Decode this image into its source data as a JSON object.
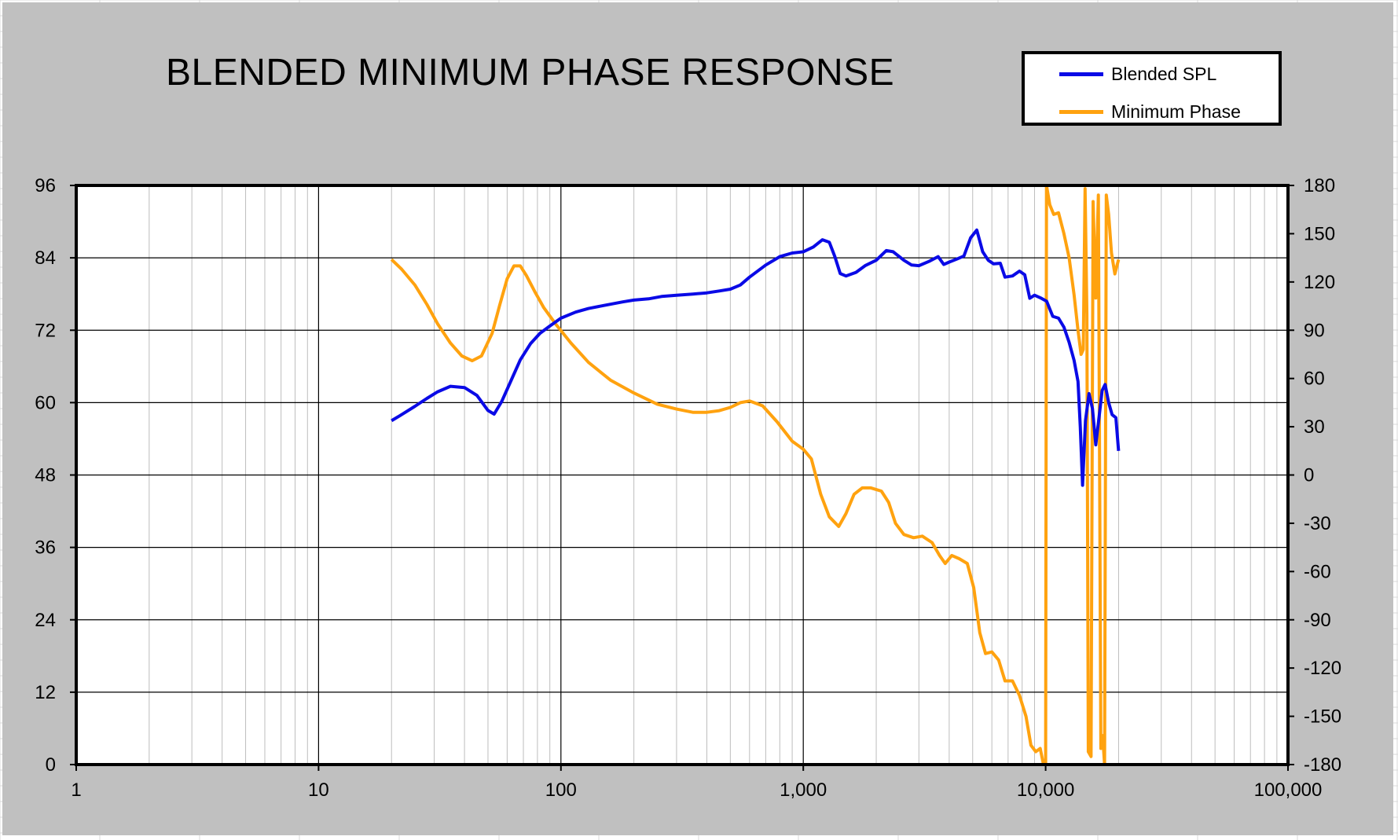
{
  "colors": {
    "chart_bg": "#c0c0c0",
    "plot_bg": "#ffffff",
    "spl": "#0a0ae6",
    "phase": "#ffa20f"
  },
  "chart_data": {
    "type": "line",
    "title": "BLENDED MINIMUM PHASE RESPONSE",
    "xscale": "log",
    "xlim": [
      1,
      100000
    ],
    "ylim_left": [
      0,
      96
    ],
    "ylim_right": [
      -180,
      180
    ],
    "x_ticks": [
      1,
      10,
      100,
      1000,
      10000,
      100000
    ],
    "x_tick_labels": [
      "1",
      "10",
      "100",
      "1,000",
      "10,000",
      "100,000"
    ],
    "y_left_ticks": [
      "0",
      "12",
      "24",
      "36",
      "48",
      "60",
      "72",
      "84",
      "96"
    ],
    "y_right_ticks": [
      "-180",
      "-150",
      "-120",
      "-90",
      "-60",
      "-30",
      "0",
      "30",
      "60",
      "90",
      "120",
      "150",
      "180"
    ],
    "grid": true,
    "legend_position": "top-right",
    "series": [
      {
        "name": "Blended SPL",
        "axis": "left",
        "color": "#0a0ae6",
        "points": [
          [
            20,
            57.0
          ],
          [
            22,
            58.0
          ],
          [
            25,
            59.4
          ],
          [
            28,
            60.7
          ],
          [
            31,
            61.8
          ],
          [
            35,
            62.7
          ],
          [
            40,
            62.5
          ],
          [
            45,
            61.2
          ],
          [
            50,
            58.7
          ],
          [
            53,
            58.1
          ],
          [
            57,
            60.2
          ],
          [
            62,
            63.5
          ],
          [
            68,
            67.1
          ],
          [
            75,
            69.8
          ],
          [
            82,
            71.5
          ],
          [
            90,
            72.7
          ],
          [
            100,
            74.0
          ],
          [
            115,
            75.0
          ],
          [
            130,
            75.6
          ],
          [
            150,
            76.1
          ],
          [
            180,
            76.7
          ],
          [
            200,
            77.0
          ],
          [
            230,
            77.2
          ],
          [
            260,
            77.6
          ],
          [
            300,
            77.8
          ],
          [
            350,
            78.0
          ],
          [
            400,
            78.2
          ],
          [
            450,
            78.5
          ],
          [
            500,
            78.8
          ],
          [
            550,
            79.5
          ],
          [
            600,
            80.8
          ],
          [
            700,
            82.8
          ],
          [
            800,
            84.2
          ],
          [
            900,
            84.8
          ],
          [
            1000,
            85.0
          ],
          [
            1100,
            85.8
          ],
          [
            1200,
            87.0
          ],
          [
            1280,
            86.6
          ],
          [
            1350,
            84.2
          ],
          [
            1420,
            81.4
          ],
          [
            1500,
            81.0
          ],
          [
            1650,
            81.6
          ],
          [
            1800,
            82.7
          ],
          [
            2000,
            83.6
          ],
          [
            2200,
            85.2
          ],
          [
            2350,
            85.0
          ],
          [
            2600,
            83.6
          ],
          [
            2800,
            82.8
          ],
          [
            3000,
            82.7
          ],
          [
            3300,
            83.4
          ],
          [
            3600,
            84.2
          ],
          [
            3800,
            82.9
          ],
          [
            4000,
            83.3
          ],
          [
            4300,
            83.8
          ],
          [
            4600,
            84.3
          ],
          [
            4900,
            87.3
          ],
          [
            5200,
            88.6
          ],
          [
            5500,
            85.0
          ],
          [
            5800,
            83.6
          ],
          [
            6100,
            83.0
          ],
          [
            6500,
            83.1
          ],
          [
            6800,
            80.8
          ],
          [
            7300,
            81.0
          ],
          [
            7800,
            81.8
          ],
          [
            8200,
            81.2
          ],
          [
            8600,
            77.3
          ],
          [
            9000,
            77.8
          ],
          [
            9600,
            77.3
          ],
          [
            10100,
            76.8
          ],
          [
            10700,
            74.3
          ],
          [
            11300,
            74.0
          ],
          [
            11900,
            72.5
          ],
          [
            12500,
            70.0
          ],
          [
            13100,
            67.0
          ],
          [
            13600,
            63.5
          ],
          [
            13900,
            56.0
          ],
          [
            14200,
            46.3
          ],
          [
            14600,
            57.0
          ],
          [
            15100,
            61.5
          ],
          [
            15600,
            59.0
          ],
          [
            16100,
            53.0
          ],
          [
            16600,
            57.5
          ],
          [
            17100,
            62.0
          ],
          [
            17600,
            63.0
          ],
          [
            18200,
            60.0
          ],
          [
            18800,
            58.0
          ],
          [
            19500,
            57.5
          ],
          [
            20000,
            52.0
          ]
        ]
      },
      {
        "name": "Minimum Phase",
        "axis": "right",
        "color": "#ffa20f",
        "points": [
          [
            20,
            134
          ],
          [
            22,
            128
          ],
          [
            25,
            118
          ],
          [
            28,
            106
          ],
          [
            31,
            94
          ],
          [
            35,
            82
          ],
          [
            39,
            74
          ],
          [
            43,
            71
          ],
          [
            47,
            74
          ],
          [
            52,
            88
          ],
          [
            56,
            106
          ],
          [
            60,
            122
          ],
          [
            64,
            130
          ],
          [
            68,
            130
          ],
          [
            72,
            124
          ],
          [
            78,
            114
          ],
          [
            85,
            104
          ],
          [
            95,
            94
          ],
          [
            110,
            82
          ],
          [
            130,
            70
          ],
          [
            160,
            59
          ],
          [
            200,
            51
          ],
          [
            250,
            44
          ],
          [
            300,
            41
          ],
          [
            350,
            39
          ],
          [
            400,
            39
          ],
          [
            450,
            40
          ],
          [
            500,
            42
          ],
          [
            550,
            45
          ],
          [
            600,
            46
          ],
          [
            680,
            43
          ],
          [
            780,
            33
          ],
          [
            900,
            21
          ],
          [
            1000,
            16
          ],
          [
            1080,
            10
          ],
          [
            1180,
            -12
          ],
          [
            1280,
            -26
          ],
          [
            1400,
            -32
          ],
          [
            1500,
            -24
          ],
          [
            1620,
            -12
          ],
          [
            1750,
            -8
          ],
          [
            1900,
            -8
          ],
          [
            2100,
            -10
          ],
          [
            2250,
            -17
          ],
          [
            2400,
            -30
          ],
          [
            2600,
            -37
          ],
          [
            2850,
            -39
          ],
          [
            3100,
            -38
          ],
          [
            3400,
            -42
          ],
          [
            3650,
            -50
          ],
          [
            3850,
            -55
          ],
          [
            4100,
            -50
          ],
          [
            4400,
            -52
          ],
          [
            4750,
            -55
          ],
          [
            5050,
            -70
          ],
          [
            5350,
            -98
          ],
          [
            5650,
            -111
          ],
          [
            6000,
            -110
          ],
          [
            6400,
            -115
          ],
          [
            6800,
            -128
          ],
          [
            7300,
            -128
          ],
          [
            7800,
            -137
          ],
          [
            8300,
            -150
          ],
          [
            8700,
            -168
          ],
          [
            9100,
            -172
          ],
          [
            9500,
            -170
          ],
          [
            9800,
            -180
          ],
          [
            10000,
            -180
          ],
          [
            10080,
            180
          ],
          [
            10400,
            168
          ],
          [
            10800,
            162
          ],
          [
            11300,
            163
          ],
          [
            11900,
            150
          ],
          [
            12500,
            135
          ],
          [
            13100,
            112
          ],
          [
            13600,
            90
          ],
          [
            14000,
            75
          ],
          [
            14300,
            78
          ],
          [
            14550,
            178
          ],
          [
            14800,
            100
          ],
          [
            15000,
            -172
          ],
          [
            15400,
            -175
          ],
          [
            15700,
            170
          ],
          [
            16100,
            110
          ],
          [
            16500,
            174
          ],
          [
            16900,
            -170
          ],
          [
            17200,
            -162
          ],
          [
            17500,
            -180
          ],
          [
            17800,
            174
          ],
          [
            18200,
            162
          ],
          [
            18700,
            138
          ],
          [
            19300,
            125
          ],
          [
            20000,
            134
          ]
        ]
      }
    ]
  }
}
